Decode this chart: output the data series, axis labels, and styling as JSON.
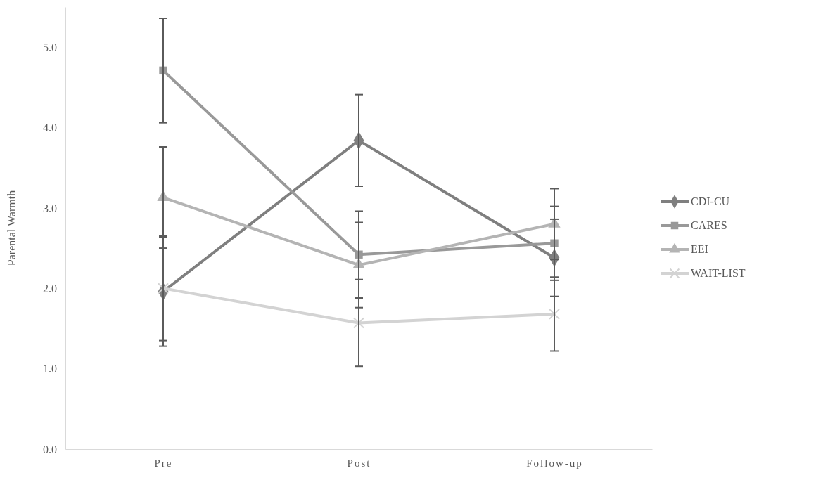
{
  "chart_data": {
    "type": "line",
    "ylabel": "Parental Warmth",
    "categories": [
      "Pre",
      "Post",
      "Follow-up"
    ],
    "series": [
      {
        "name": "CDI-CU",
        "color": "#7f7f7f",
        "marker": "diamond",
        "values": [
          1.96,
          3.84,
          2.38
        ],
        "errors": [
          0.68,
          0.57,
          0.48
        ]
      },
      {
        "name": "CARES",
        "color": "#999999",
        "marker": "square",
        "values": [
          4.71,
          2.42,
          2.56
        ],
        "errors": [
          0.65,
          0.54,
          0.46
        ]
      },
      {
        "name": "EEI",
        "color": "#b4b4b4",
        "marker": "triangle",
        "values": [
          3.13,
          2.29,
          2.8
        ],
        "errors": [
          0.63,
          0.53,
          0.44
        ]
      },
      {
        "name": "WAIT-LIST",
        "color": "#d3d3d3",
        "marker": "cross",
        "values": [
          2.0,
          1.57,
          1.68
        ],
        "errors": [
          0.65,
          0.54,
          0.46
        ]
      }
    ],
    "ylim": [
      0,
      5.5
    ],
    "yticks": [
      {
        "value": 0,
        "label": "0.0"
      },
      {
        "value": 1,
        "label": "1.0"
      },
      {
        "value": 2,
        "label": "2.0"
      },
      {
        "value": 3,
        "label": "3.0"
      },
      {
        "value": 4,
        "label": "4.0"
      },
      {
        "value": 5,
        "label": "5.0"
      }
    ],
    "grid": false,
    "legend": "right"
  }
}
